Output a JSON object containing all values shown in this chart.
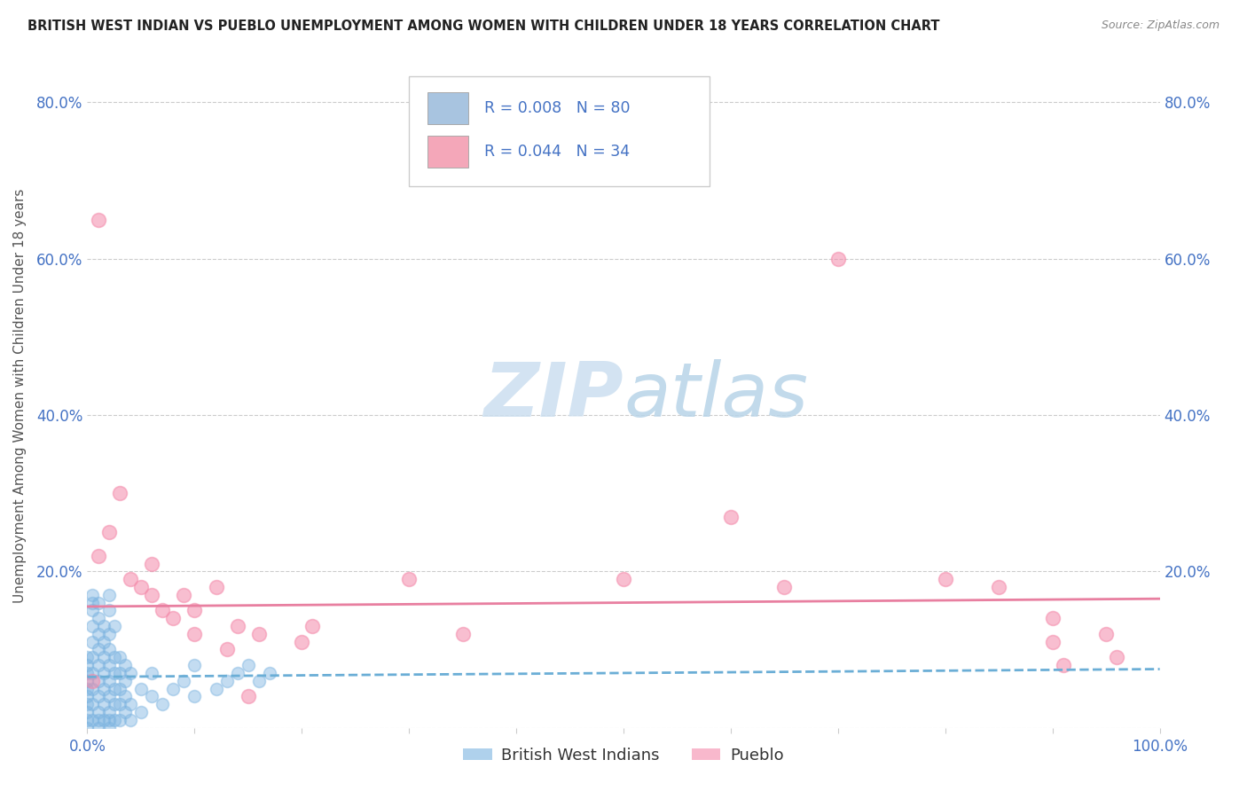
{
  "title": "BRITISH WEST INDIAN VS PUEBLO UNEMPLOYMENT AMONG WOMEN WITH CHILDREN UNDER 18 YEARS CORRELATION CHART",
  "source": "Source: ZipAtlas.com",
  "ylabel": "Unemployment Among Women with Children Under 18 years",
  "xlim": [
    0.0,
    1.0
  ],
  "ylim": [
    0.0,
    0.85
  ],
  "xticks": [
    0.0,
    0.1,
    0.2,
    0.3,
    0.4,
    0.5,
    0.6,
    0.7,
    0.8,
    0.9,
    1.0
  ],
  "xticklabels": [
    "0.0%",
    "",
    "",
    "",
    "",
    "",
    "",
    "",
    "",
    "",
    "100.0%"
  ],
  "yticks": [
    0.0,
    0.2,
    0.4,
    0.6,
    0.8
  ],
  "yticklabels": [
    "",
    "20.0%",
    "40.0%",
    "60.0%",
    "80.0%"
  ],
  "legend_color1": "#a8c4e0",
  "legend_color2": "#f4a7b9",
  "watermark": "ZIPatlas",
  "watermark_zip_color": "#c8dff0",
  "watermark_atlas_color": "#c0d8e8",
  "blue_color": "#7bb3e0",
  "pink_color": "#f48aaa",
  "trend_blue_color": "#6baed6",
  "trend_pink_color": "#e87fa0",
  "blue_scatter": [
    [
      0.0,
      0.0
    ],
    [
      0.0,
      0.01
    ],
    [
      0.0,
      0.02
    ],
    [
      0.0,
      0.03
    ],
    [
      0.0,
      0.04
    ],
    [
      0.0,
      0.05
    ],
    [
      0.0,
      0.06
    ],
    [
      0.0,
      0.07
    ],
    [
      0.0,
      0.08
    ],
    [
      0.0,
      0.09
    ],
    [
      0.005,
      0.01
    ],
    [
      0.005,
      0.03
    ],
    [
      0.005,
      0.05
    ],
    [
      0.005,
      0.07
    ],
    [
      0.005,
      0.09
    ],
    [
      0.005,
      0.11
    ],
    [
      0.005,
      0.13
    ],
    [
      0.005,
      0.15
    ],
    [
      0.005,
      0.16
    ],
    [
      0.005,
      0.17
    ],
    [
      0.01,
      0.0
    ],
    [
      0.01,
      0.01
    ],
    [
      0.01,
      0.02
    ],
    [
      0.01,
      0.04
    ],
    [
      0.01,
      0.06
    ],
    [
      0.01,
      0.08
    ],
    [
      0.01,
      0.1
    ],
    [
      0.01,
      0.12
    ],
    [
      0.01,
      0.14
    ],
    [
      0.01,
      0.16
    ],
    [
      0.015,
      0.01
    ],
    [
      0.015,
      0.03
    ],
    [
      0.015,
      0.05
    ],
    [
      0.015,
      0.07
    ],
    [
      0.015,
      0.09
    ],
    [
      0.015,
      0.11
    ],
    [
      0.015,
      0.13
    ],
    [
      0.02,
      0.0
    ],
    [
      0.02,
      0.01
    ],
    [
      0.02,
      0.02
    ],
    [
      0.02,
      0.04
    ],
    [
      0.02,
      0.06
    ],
    [
      0.02,
      0.08
    ],
    [
      0.02,
      0.1
    ],
    [
      0.02,
      0.12
    ],
    [
      0.02,
      0.15
    ],
    [
      0.02,
      0.17
    ],
    [
      0.025,
      0.01
    ],
    [
      0.025,
      0.03
    ],
    [
      0.025,
      0.05
    ],
    [
      0.025,
      0.07
    ],
    [
      0.025,
      0.09
    ],
    [
      0.025,
      0.13
    ],
    [
      0.03,
      0.01
    ],
    [
      0.03,
      0.03
    ],
    [
      0.03,
      0.05
    ],
    [
      0.03,
      0.07
    ],
    [
      0.03,
      0.09
    ],
    [
      0.035,
      0.02
    ],
    [
      0.035,
      0.04
    ],
    [
      0.035,
      0.06
    ],
    [
      0.035,
      0.08
    ],
    [
      0.04,
      0.01
    ],
    [
      0.04,
      0.03
    ],
    [
      0.04,
      0.07
    ],
    [
      0.05,
      0.02
    ],
    [
      0.05,
      0.05
    ],
    [
      0.06,
      0.04
    ],
    [
      0.06,
      0.07
    ],
    [
      0.07,
      0.03
    ],
    [
      0.08,
      0.05
    ],
    [
      0.09,
      0.06
    ],
    [
      0.1,
      0.04
    ],
    [
      0.1,
      0.08
    ],
    [
      0.12,
      0.05
    ],
    [
      0.13,
      0.06
    ],
    [
      0.14,
      0.07
    ],
    [
      0.15,
      0.08
    ],
    [
      0.16,
      0.06
    ],
    [
      0.17,
      0.07
    ]
  ],
  "pink_scatter": [
    [
      0.01,
      0.65
    ],
    [
      0.01,
      0.22
    ],
    [
      0.02,
      0.25
    ],
    [
      0.03,
      0.3
    ],
    [
      0.04,
      0.19
    ],
    [
      0.05,
      0.18
    ],
    [
      0.06,
      0.17
    ],
    [
      0.06,
      0.21
    ],
    [
      0.07,
      0.15
    ],
    [
      0.08,
      0.14
    ],
    [
      0.09,
      0.17
    ],
    [
      0.1,
      0.12
    ],
    [
      0.1,
      0.15
    ],
    [
      0.12,
      0.18
    ],
    [
      0.13,
      0.1
    ],
    [
      0.14,
      0.13
    ],
    [
      0.15,
      0.04
    ],
    [
      0.16,
      0.12
    ],
    [
      0.2,
      0.11
    ],
    [
      0.21,
      0.13
    ],
    [
      0.3,
      0.19
    ],
    [
      0.35,
      0.12
    ],
    [
      0.5,
      0.19
    ],
    [
      0.6,
      0.27
    ],
    [
      0.65,
      0.18
    ],
    [
      0.7,
      0.6
    ],
    [
      0.8,
      0.19
    ],
    [
      0.85,
      0.18
    ],
    [
      0.9,
      0.14
    ],
    [
      0.9,
      0.11
    ],
    [
      0.91,
      0.08
    ],
    [
      0.95,
      0.12
    ],
    [
      0.96,
      0.09
    ],
    [
      0.005,
      0.06
    ]
  ],
  "pink_trend_start_y": 0.155,
  "pink_trend_end_y": 0.165,
  "blue_trend_start_y": 0.065,
  "blue_trend_end_y": 0.075
}
